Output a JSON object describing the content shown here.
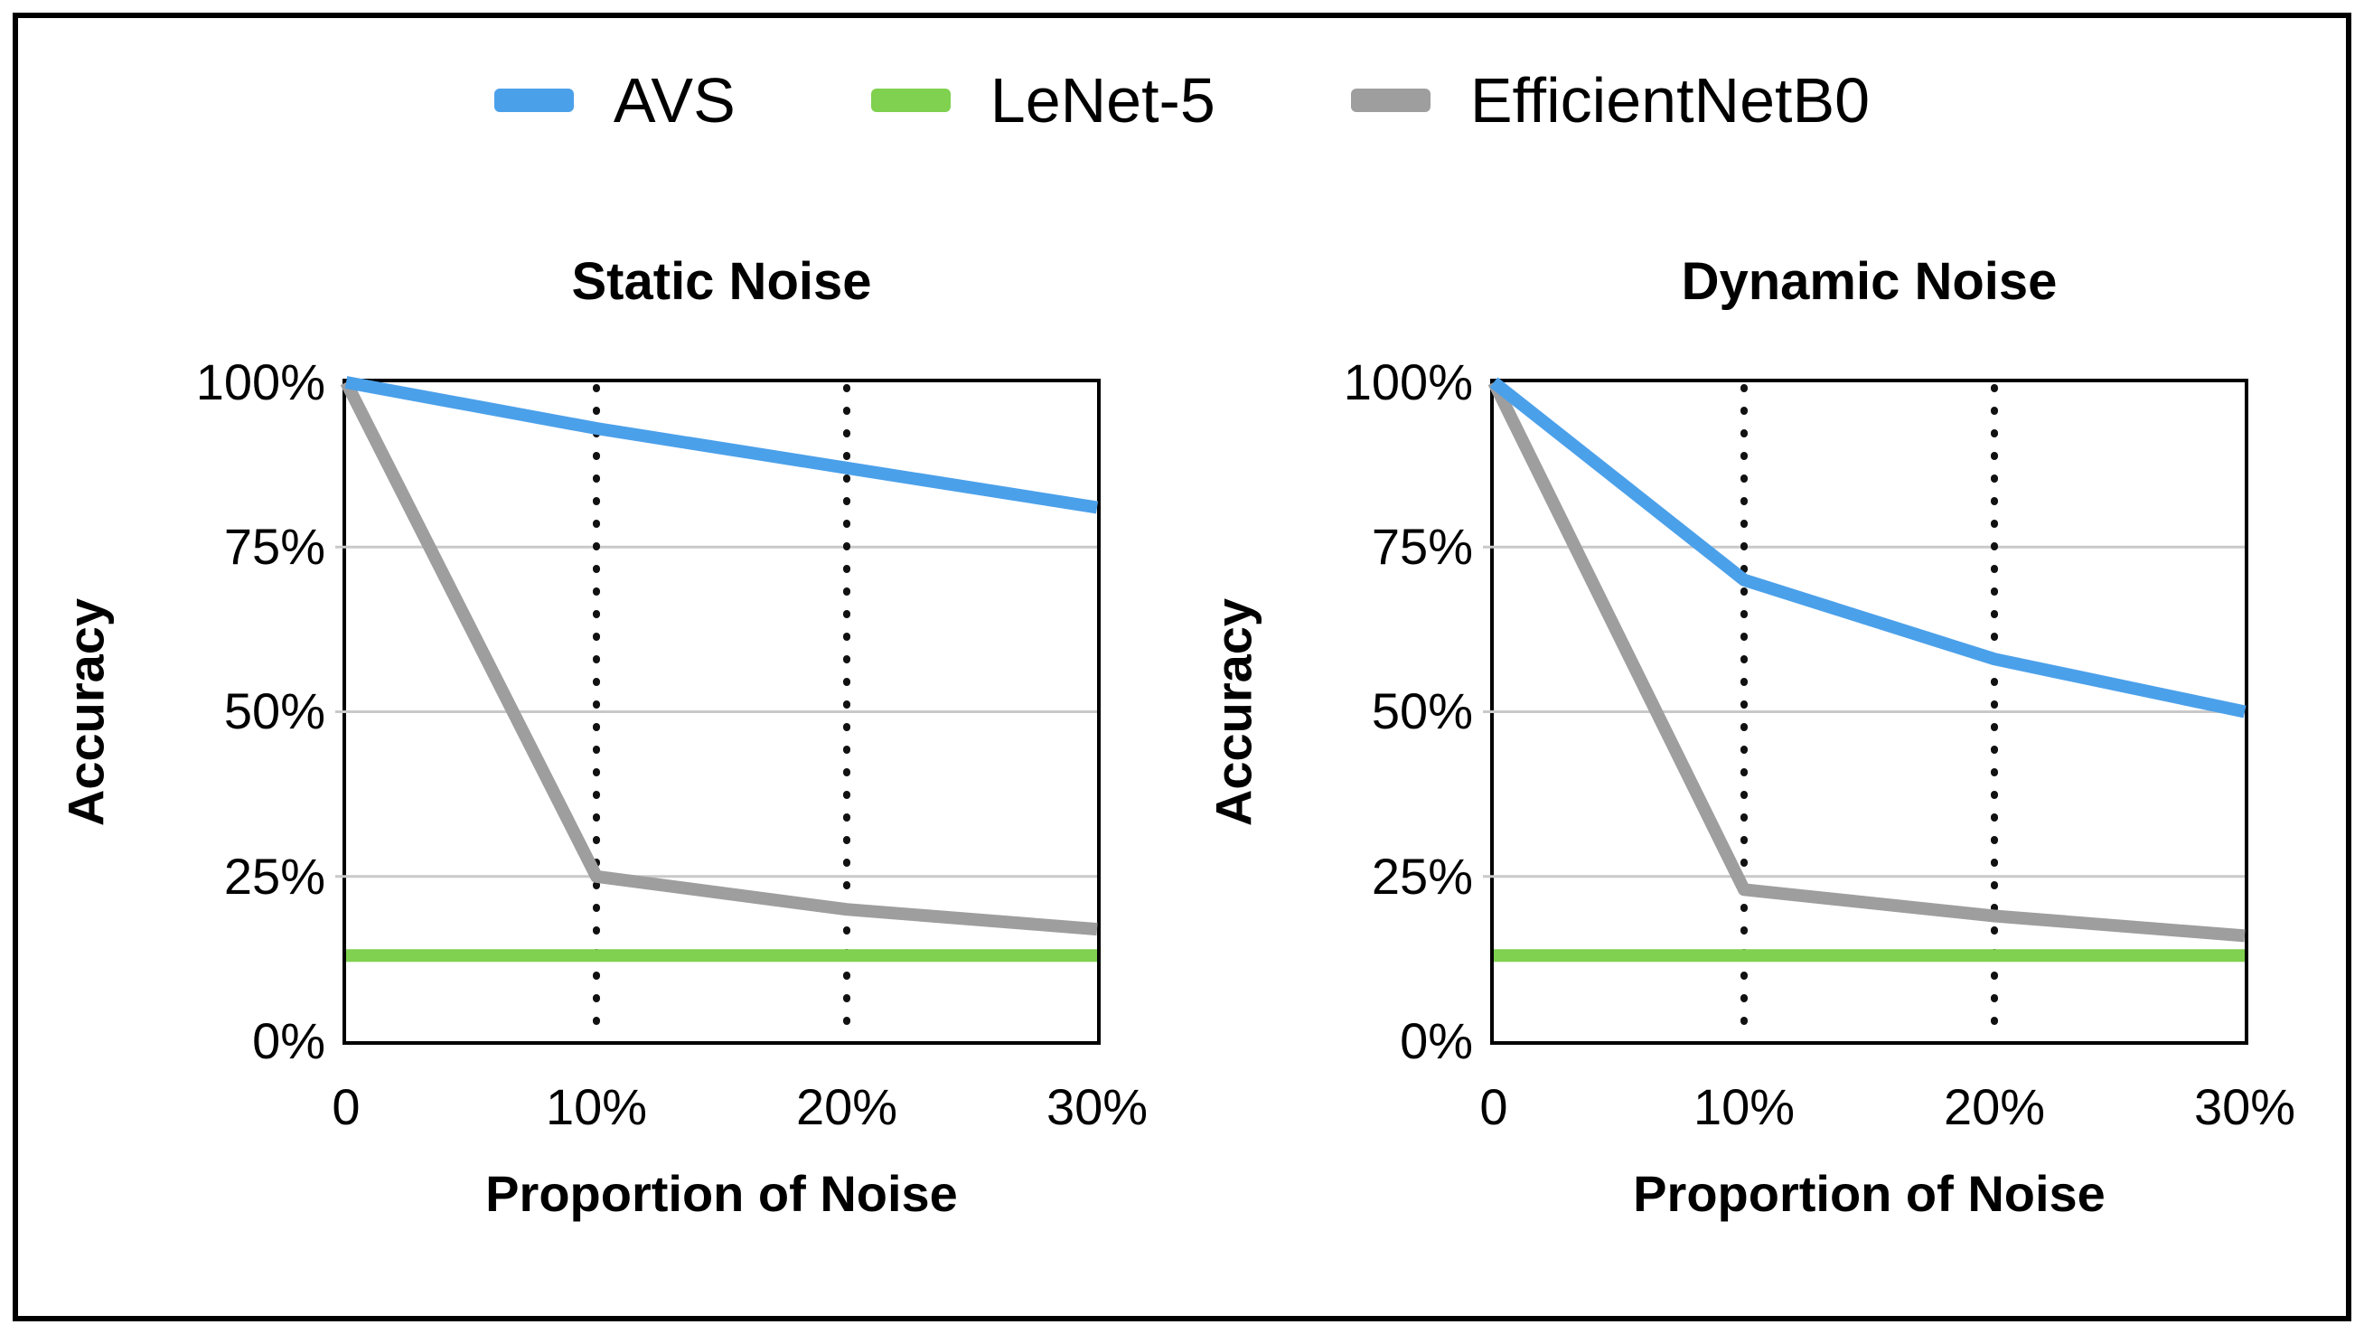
{
  "colors": {
    "background": "#ffffff",
    "frame_border": "#000000",
    "plot_border": "#000000",
    "gridline": "#c9c9c9",
    "guide_dots": "#111111",
    "avs_blue": "#4ba0ea",
    "lenet_green": "#7fd14f",
    "efficientnet_gray": "#9e9e9e"
  },
  "legend": {
    "items": [
      {
        "label": "AVS",
        "color": "#4ba0ea"
      },
      {
        "label": "LeNet-5",
        "color": "#7fd14f"
      },
      {
        "label": "EfficientNetB0",
        "color": "#9e9e9e"
      }
    ]
  },
  "chart_data": [
    {
      "type": "line",
      "title": "Static Noise",
      "xlabel": "Proportion of Noise",
      "ylabel": "Accuracy",
      "categories": [
        "0",
        "10%",
        "20%",
        "30%"
      ],
      "yticks": [
        "100%",
        "75%",
        "50%",
        "25%",
        "0%"
      ],
      "ylim": [
        0,
        100
      ],
      "gridlines_y": [
        25,
        50,
        75
      ],
      "guide_x_indices": [
        1,
        2
      ],
      "legend_position": "top",
      "series": [
        {
          "name": "AVS",
          "color": "#4ba0ea",
          "values": [
            100,
            93,
            87,
            81
          ]
        },
        {
          "name": "LeNet-5",
          "color": "#7fd14f",
          "values": [
            13,
            13,
            13,
            13
          ]
        },
        {
          "name": "EfficientNetB0",
          "color": "#9e9e9e",
          "values": [
            100,
            25,
            20,
            17
          ]
        }
      ]
    },
    {
      "type": "line",
      "title": "Dynamic Noise",
      "xlabel": "Proportion of Noise",
      "ylabel": "Accuracy",
      "categories": [
        "0",
        "10%",
        "20%",
        "30%"
      ],
      "yticks": [
        "100%",
        "75%",
        "50%",
        "25%",
        "0%"
      ],
      "ylim": [
        0,
        100
      ],
      "gridlines_y": [
        25,
        50,
        75
      ],
      "guide_x_indices": [
        1,
        2
      ],
      "legend_position": "top",
      "series": [
        {
          "name": "AVS",
          "color": "#4ba0ea",
          "values": [
            100,
            70,
            58,
            50
          ]
        },
        {
          "name": "LeNet-5",
          "color": "#7fd14f",
          "values": [
            13,
            13,
            13,
            13
          ]
        },
        {
          "name": "EfficientNetB0",
          "color": "#9e9e9e",
          "values": [
            100,
            23,
            19,
            16
          ]
        }
      ]
    }
  ]
}
